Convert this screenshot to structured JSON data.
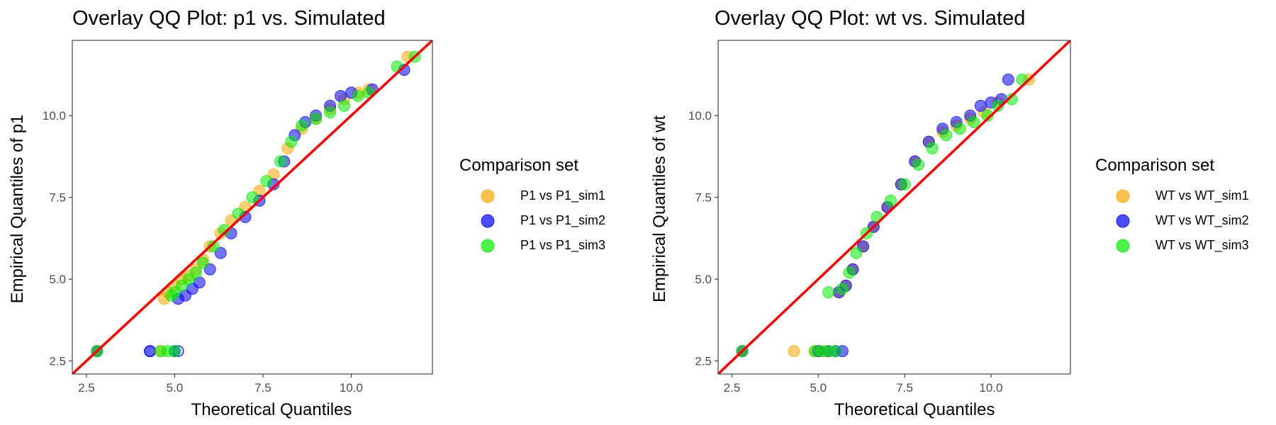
{
  "colors": {
    "sim1": "#FFA500",
    "sim2": "#0000FF",
    "sim3": "#00EE00",
    "reference_line": "#FF0000"
  },
  "chart_data": [
    {
      "type": "scatter",
      "title": "Overlay QQ Plot: p1 vs. Simulated",
      "xlabel": "Theoretical Quantiles",
      "ylabel": "Empirical Quantiles of p1",
      "xlim": [
        2.1,
        12.3
      ],
      "ylim": [
        2.1,
        12.3
      ],
      "xticks": [
        2.5,
        5.0,
        7.5,
        10.0
      ],
      "xtick_labels": [
        "2.5",
        "5.0",
        "7.5",
        "10.0"
      ],
      "yticks": [
        2.5,
        5.0,
        7.5,
        10.0
      ],
      "ytick_labels": [
        "2.5",
        "5.0",
        "7.5",
        "10.0"
      ],
      "reference_line": {
        "slope": 1,
        "intercept": 0
      },
      "legend": {
        "title": "Comparison set",
        "entries": [
          "P1 vs P1_sim1",
          "P1 vs P1_sim2",
          "P1 vs P1_sim3"
        ]
      },
      "series": [
        {
          "name": "P1 vs P1_sim1",
          "color": "#FFA500",
          "x": [
            2.8,
            4.6,
            4.7,
            4.8,
            5.0,
            5.2,
            5.4,
            5.6,
            5.8,
            6.0,
            6.3,
            6.6,
            7.0,
            7.4,
            7.8,
            8.2,
            8.6,
            9.0,
            9.4,
            9.8,
            10.2,
            10.5,
            11.6
          ],
          "y": [
            2.8,
            2.8,
            4.4,
            4.6,
            4.8,
            5.0,
            5.1,
            5.3,
            5.6,
            6.0,
            6.4,
            6.8,
            7.2,
            7.7,
            8.2,
            9.0,
            9.6,
            9.9,
            10.2,
            10.5,
            10.7,
            10.8,
            11.8
          ]
        },
        {
          "name": "P1 vs P1_sim2",
          "color": "#0000FF",
          "x": [
            2.8,
            4.3,
            5.0,
            5.1,
            5.3,
            5.5,
            5.7,
            6.0,
            6.3,
            6.6,
            7.0,
            7.4,
            7.8,
            8.1,
            8.4,
            8.7,
            9.0,
            9.4,
            9.7,
            10.0,
            10.6,
            11.5
          ],
          "y": [
            2.8,
            2.8,
            2.8,
            4.4,
            4.5,
            4.7,
            4.9,
            5.3,
            5.8,
            6.4,
            6.9,
            7.4,
            7.9,
            8.6,
            9.4,
            9.8,
            10.0,
            10.3,
            10.6,
            10.7,
            10.8,
            11.4
          ],
          "hollow_x": [
            4.3,
            5.1
          ],
          "hollow_y": [
            2.8,
            2.8
          ]
        },
        {
          "name": "P1 vs P1_sim3",
          "color": "#00EE00",
          "x": [
            2.8,
            4.6,
            4.8,
            5.0,
            4.9,
            5.0,
            5.2,
            5.4,
            5.6,
            5.8,
            6.1,
            6.4,
            6.8,
            7.2,
            7.6,
            8.0,
            8.3,
            8.6,
            9.0,
            9.4,
            9.8,
            10.2,
            10.5,
            11.3,
            11.8
          ],
          "y": [
            2.8,
            2.8,
            2.8,
            2.8,
            4.5,
            4.6,
            4.8,
            5.0,
            5.2,
            5.5,
            6.0,
            6.5,
            7.0,
            7.5,
            8.0,
            8.6,
            9.2,
            9.7,
            9.9,
            10.1,
            10.3,
            10.6,
            10.7,
            11.5,
            11.8
          ]
        }
      ]
    },
    {
      "type": "scatter",
      "title": "Overlay QQ Plot: wt vs. Simulated",
      "xlabel": "Theoretical Quantiles",
      "ylabel": "Empirical Quantiles of wt",
      "xlim": [
        2.1,
        12.3
      ],
      "ylim": [
        2.1,
        12.3
      ],
      "xticks": [
        2.5,
        5.0,
        7.5,
        10.0
      ],
      "xtick_labels": [
        "2.5",
        "5.0",
        "7.5",
        "10.0"
      ],
      "yticks": [
        2.5,
        5.0,
        7.5,
        10.0
      ],
      "ytick_labels": [
        "2.5",
        "5.0",
        "7.5",
        "10.0"
      ],
      "reference_line": {
        "slope": 1,
        "intercept": 0
      },
      "legend": {
        "title": "Comparison set",
        "entries": [
          "WT vs WT_sim1",
          "WT vs WT_sim2",
          "WT vs WT_sim3"
        ]
      },
      "series": [
        {
          "name": "WT vs WT_sim1",
          "color": "#FFA500",
          "x": [
            2.8,
            4.3,
            4.9,
            5.2,
            5.6,
            5.8,
            6.0,
            6.3,
            6.6,
            7.0,
            7.4,
            7.8,
            8.2,
            8.6,
            9.0,
            9.4,
            9.8,
            10.2,
            11.1
          ],
          "y": [
            2.8,
            2.8,
            2.8,
            2.8,
            4.6,
            4.8,
            5.3,
            6.0,
            6.6,
            7.2,
            7.9,
            8.6,
            9.2,
            9.5,
            9.7,
            9.9,
            10.1,
            10.4,
            11.1
          ]
        },
        {
          "name": "WT vs WT_sim2",
          "color": "#0000FF",
          "x": [
            2.8,
            5.0,
            5.3,
            5.5,
            5.7,
            5.6,
            5.8,
            6.0,
            6.3,
            6.6,
            7.0,
            7.4,
            7.8,
            8.2,
            8.6,
            9.0,
            9.4,
            9.7,
            10.0,
            10.3,
            10.5
          ],
          "y": [
            2.8,
            2.8,
            2.8,
            2.8,
            2.8,
            4.6,
            4.8,
            5.3,
            6.0,
            6.6,
            7.2,
            7.9,
            8.6,
            9.2,
            9.6,
            9.8,
            10.0,
            10.3,
            10.4,
            10.5,
            11.1
          ]
        },
        {
          "name": "WT vs WT_sim3",
          "color": "#00EE00",
          "x": [
            2.8,
            4.9,
            5.1,
            5.3,
            5.5,
            5.3,
            5.7,
            5.9,
            6.1,
            6.4,
            6.7,
            7.1,
            7.5,
            7.9,
            8.3,
            8.7,
            9.1,
            9.5,
            9.9,
            10.2,
            10.6,
            10.9
          ],
          "y": [
            2.8,
            2.8,
            2.8,
            2.8,
            2.8,
            4.6,
            4.7,
            5.2,
            5.8,
            6.4,
            6.9,
            7.4,
            7.9,
            8.5,
            9.0,
            9.4,
            9.6,
            9.8,
            10.0,
            10.3,
            10.5,
            11.1
          ]
        }
      ]
    }
  ]
}
